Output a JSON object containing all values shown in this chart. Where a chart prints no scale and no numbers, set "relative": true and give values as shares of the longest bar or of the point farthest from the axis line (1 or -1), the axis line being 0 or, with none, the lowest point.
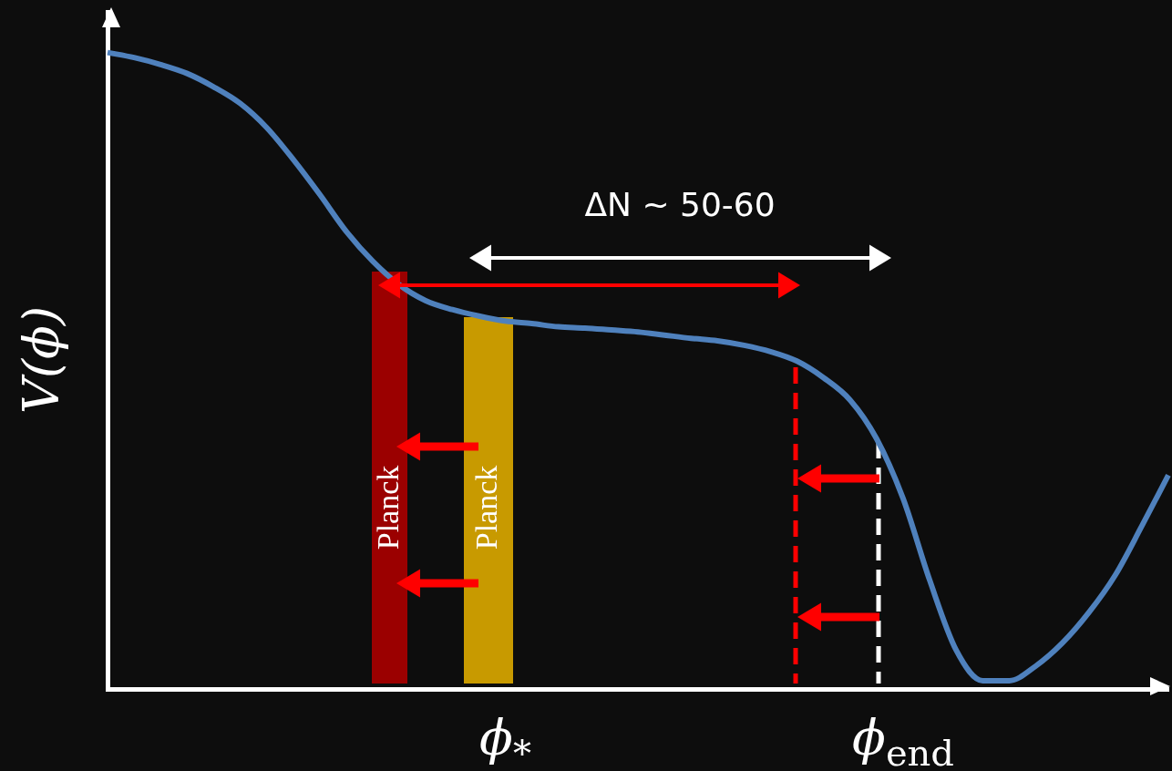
{
  "chart_data": {
    "type": "line",
    "relative": true,
    "ylabel": "V(ϕ)",
    "categories": [
      null,
      null,
      null,
      null,
      null,
      null,
      null,
      null,
      null,
      null,
      null,
      null,
      null,
      null,
      null,
      "ϕ$_{*}$",
      null,
      null,
      null,
      null,
      null,
      null,
      null,
      null,
      null,
      null,
      null,
      null,
      null,
      null,
      "ϕ$_{end}$",
      null,
      null,
      null,
      null,
      null,
      null,
      null,
      null,
      null,
      null
    ],
    "series": [
      {
        "color": "#4f81bd",
        "values": [
          1.0,
          0.992,
          0.981,
          0.967,
          0.946,
          0.92,
          0.882,
          0.832,
          0.777,
          0.719,
          0.672,
          0.635,
          0.61,
          0.596,
          0.586,
          0.578,
          0.574,
          0.569,
          0.567,
          0.564,
          0.561,
          0.556,
          0.551,
          0.547,
          0.54,
          0.53,
          0.515,
          0.489,
          0.454,
          0.393,
          0.299,
          0.171,
          0.061,
          0.013,
          0.013,
          0.036,
          0.072,
          0.12,
          0.179,
          0.256,
          0.336
        ]
      }
    ],
    "annotations": [
      "ΔN ~ 50-60",
      "Planck",
      "Planck"
    ]
  }
}
